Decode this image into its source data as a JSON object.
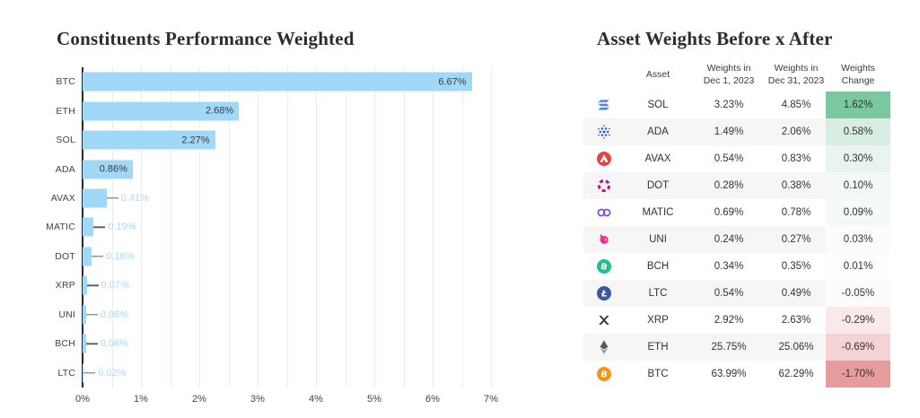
{
  "chart_data": [
    {
      "type": "bar",
      "title": "Constituents Performance Weighted",
      "orientation": "horizontal",
      "categories": [
        "BTC",
        "ETH",
        "SOL",
        "ADA",
        "AVAX",
        "MATIC",
        "DOT",
        "XRP",
        "UNI",
        "BCH",
        "LTC"
      ],
      "values": [
        6.67,
        2.68,
        2.27,
        0.86,
        0.41,
        0.19,
        0.16,
        0.07,
        0.06,
        0.06,
        0.02
      ],
      "value_labels": [
        "6.67%",
        "2.68%",
        "2.27%",
        "0.86%",
        "0.41%",
        "0.19%",
        "0.16%",
        "0.07%",
        "0.06%",
        "0.06%",
        "0.02%"
      ],
      "xlabel": "",
      "ylabel": "",
      "xlim": [
        0,
        7
      ],
      "x_ticks": [
        "0%",
        "1%",
        "2%",
        "3%",
        "4%",
        "5%",
        "6%",
        "7%"
      ],
      "grid": true,
      "legend": "none",
      "colors": {
        "bar": "#a0d9f8",
        "inside_label": "#3c3c3c",
        "outside_label": "#a5dbfa",
        "leader_line": "#5f6368",
        "axis_line": "#24292e",
        "gridline": "#ececec"
      }
    },
    {
      "type": "table",
      "title": "Asset Weights Before x After",
      "columns": [
        {
          "line1": "Asset",
          "line2": ""
        },
        {
          "line1": "Weights in",
          "line2": "Dec 1, 2023"
        },
        {
          "line1": "Weights in",
          "line2": "Dec 31, 2023"
        },
        {
          "line1": "Weights",
          "line2": "Change"
        }
      ],
      "rows": [
        {
          "icon": "sol-icon",
          "asset": "SOL",
          "before": "3.23%",
          "after": "4.85%",
          "change": "1.62%",
          "change_bg": "#7ac7a0"
        },
        {
          "icon": "ada-icon",
          "asset": "ADA",
          "before": "1.49%",
          "after": "2.06%",
          "change": "0.58%",
          "change_bg": "#d9eee3"
        },
        {
          "icon": "avax-icon",
          "asset": "AVAX",
          "before": "0.54%",
          "after": "0.83%",
          "change": "0.30%",
          "change_bg": "#e9f4ee"
        },
        {
          "icon": "dot-icon",
          "asset": "DOT",
          "before": "0.28%",
          "after": "0.38%",
          "change": "0.10%",
          "change_bg": "#f3f9f6"
        },
        {
          "icon": "matic-icon",
          "asset": "MATIC",
          "before": "0.69%",
          "after": "0.78%",
          "change": "0.09%",
          "change_bg": "#f4faf7"
        },
        {
          "icon": "uni-icon",
          "asset": "UNI",
          "before": "0.24%",
          "after": "0.27%",
          "change": "0.03%",
          "change_bg": "#fbfdfc"
        },
        {
          "icon": "bch-icon",
          "asset": "BCH",
          "before": "0.34%",
          "after": "0.35%",
          "change": "0.01%",
          "change_bg": "#fdfefd"
        },
        {
          "icon": "ltc-icon",
          "asset": "LTC",
          "before": "0.54%",
          "after": "0.49%",
          "change": "-0.05%",
          "change_bg": "#fefbfb"
        },
        {
          "icon": "xrp-icon",
          "asset": "XRP",
          "before": "2.92%",
          "after": "2.63%",
          "change": "-0.29%",
          "change_bg": "#f9e9e9"
        },
        {
          "icon": "eth-icon",
          "asset": "ETH",
          "before": "25.75%",
          "after": "25.06%",
          "change": "-0.69%",
          "change_bg": "#f3d3d3"
        },
        {
          "icon": "btc-icon",
          "asset": "BTC",
          "before": "63.99%",
          "after": "62.29%",
          "change": "-1.70%",
          "change_bg": "#e69c9c"
        }
      ]
    }
  ]
}
